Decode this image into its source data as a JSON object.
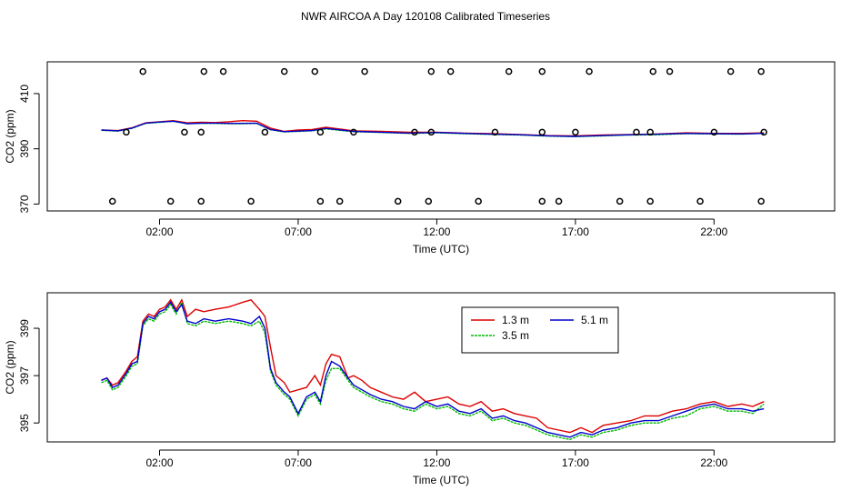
{
  "title": "NWR AIRCOA A  Day 120108  Calibrated Timeseries",
  "colors": {
    "s1": "#dd0000",
    "s2": "#00bb00",
    "s3": "#0000cc"
  },
  "chart_data": [
    {
      "type": "line",
      "xlabel": "Time (UTC)",
      "ylabel": "CO2 (ppm)",
      "xlim": [
        -2.05,
        26.35
      ],
      "ylim": [
        367.5,
        421.5
      ],
      "xticks": [
        {
          "v": 2,
          "label": "02:00"
        },
        {
          "v": 7,
          "label": "07:00"
        },
        {
          "v": 12,
          "label": "12:00"
        },
        {
          "v": 17,
          "label": "17:00"
        },
        {
          "v": 22,
          "label": "22:00"
        }
      ],
      "yticks": [
        {
          "v": 370,
          "label": "370"
        },
        {
          "v": 390,
          "label": "390"
        },
        {
          "v": 410,
          "label": "410"
        }
      ],
      "series": [
        {
          "color": "#dd0000",
          "x": [
            -0.1,
            0.5,
            1.0,
            1.5,
            2.0,
            2.5,
            3.0,
            3.5,
            4.0,
            4.5,
            5.0,
            5.5,
            6.0,
            6.5,
            7.0,
            7.5,
            8.0,
            9.0,
            10.0,
            11.0,
            12.0,
            13.0,
            14.0,
            15.0,
            16.0,
            17.0,
            18.0,
            19.0,
            20.0,
            21.0,
            22.0,
            23.0,
            23.8
          ],
          "y": [
            396.8,
            396.6,
            397.6,
            399.4,
            399.8,
            400.2,
            399.4,
            399.6,
            399.5,
            399.8,
            400.2,
            400.0,
            397.5,
            396.3,
            396.8,
            397.0,
            397.8,
            396.5,
            396.3,
            396.0,
            396.0,
            395.7,
            395.5,
            395.2,
            394.8,
            394.7,
            395.0,
            395.2,
            395.4,
            395.8,
            395.6,
            395.6,
            395.8
          ]
        },
        {
          "color": "#00bb00",
          "x": [
            -0.1,
            0.5,
            1.0,
            1.5,
            2.0,
            2.5,
            3.0,
            3.5,
            4.0,
            4.5,
            5.0,
            5.5,
            6.0,
            6.5,
            7.0,
            7.5,
            8.0,
            9.0,
            10.0,
            11.0,
            12.0,
            13.0,
            14.0,
            15.0,
            16.0,
            17.0,
            18.0,
            19.0,
            20.0,
            21.0,
            22.0,
            23.0,
            23.8
          ],
          "y": [
            396.7,
            396.4,
            397.4,
            399.2,
            399.6,
            400.0,
            399.1,
            399.2,
            399.2,
            399.1,
            399.1,
            399.2,
            396.9,
            396.1,
            396.3,
            396.5,
            397.2,
            396.2,
            395.9,
            395.6,
            395.8,
            395.5,
            395.2,
            395.0,
            394.6,
            394.4,
            394.7,
            395.0,
            395.1,
            395.5,
            395.4,
            395.3,
            395.7
          ]
        },
        {
          "color": "#0000cc",
          "x": [
            -0.1,
            0.5,
            1.0,
            1.5,
            2.0,
            2.5,
            3.0,
            3.5,
            4.0,
            4.5,
            5.0,
            5.5,
            6.0,
            6.5,
            7.0,
            7.5,
            8.0,
            9.0,
            10.0,
            11.0,
            12.0,
            13.0,
            14.0,
            15.0,
            16.0,
            17.0,
            18.0,
            19.0,
            20.0,
            21.0,
            22.0,
            23.0,
            23.8
          ],
          "y": [
            396.8,
            396.5,
            397.5,
            399.3,
            399.7,
            400.0,
            399.1,
            399.3,
            399.3,
            399.2,
            399.2,
            399.3,
            397.0,
            396.2,
            396.4,
            396.6,
            397.4,
            396.3,
            396.0,
            395.7,
            395.9,
            395.6,
            395.3,
            395.1,
            394.7,
            394.5,
            394.8,
            395.1,
            395.3,
            395.6,
            395.5,
            395.4,
            395.6
          ]
        }
      ],
      "points": [
        {
          "x": 0.3,
          "y": 371
        },
        {
          "x": 2.4,
          "y": 371
        },
        {
          "x": 3.5,
          "y": 371
        },
        {
          "x": 5.3,
          "y": 371
        },
        {
          "x": 7.8,
          "y": 371
        },
        {
          "x": 8.5,
          "y": 371
        },
        {
          "x": 10.6,
          "y": 371
        },
        {
          "x": 11.7,
          "y": 371
        },
        {
          "x": 13.5,
          "y": 371
        },
        {
          "x": 15.8,
          "y": 371
        },
        {
          "x": 16.4,
          "y": 371
        },
        {
          "x": 18.6,
          "y": 371
        },
        {
          "x": 19.7,
          "y": 371
        },
        {
          "x": 21.5,
          "y": 371
        },
        {
          "x": 23.7,
          "y": 371
        },
        {
          "x": 1.4,
          "y": 418
        },
        {
          "x": 3.6,
          "y": 418
        },
        {
          "x": 4.3,
          "y": 418
        },
        {
          "x": 6.5,
          "y": 418
        },
        {
          "x": 7.6,
          "y": 418
        },
        {
          "x": 9.4,
          "y": 418
        },
        {
          "x": 11.8,
          "y": 418
        },
        {
          "x": 12.5,
          "y": 418
        },
        {
          "x": 14.6,
          "y": 418
        },
        {
          "x": 15.8,
          "y": 418
        },
        {
          "x": 17.5,
          "y": 418
        },
        {
          "x": 19.8,
          "y": 418
        },
        {
          "x": 20.4,
          "y": 418
        },
        {
          "x": 22.6,
          "y": 418
        },
        {
          "x": 23.7,
          "y": 418
        },
        {
          "x": 0.8,
          "y": 396
        },
        {
          "x": 2.9,
          "y": 396
        },
        {
          "x": 3.5,
          "y": 396
        },
        {
          "x": 5.8,
          "y": 396
        },
        {
          "x": 7.8,
          "y": 396
        },
        {
          "x": 9.0,
          "y": 396
        },
        {
          "x": 11.2,
          "y": 396
        },
        {
          "x": 11.8,
          "y": 396
        },
        {
          "x": 14.1,
          "y": 396
        },
        {
          "x": 15.8,
          "y": 396
        },
        {
          "x": 17.0,
          "y": 396
        },
        {
          "x": 19.2,
          "y": 396
        },
        {
          "x": 19.7,
          "y": 396
        },
        {
          "x": 22.0,
          "y": 396
        },
        {
          "x": 23.8,
          "y": 396
        }
      ]
    },
    {
      "type": "line",
      "xlabel": "Time (UTC)",
      "ylabel": "CO2 (ppm)",
      "xlim": [
        -2.05,
        26.35
      ],
      "ylim": [
        394.2,
        400.5
      ],
      "xticks": [
        {
          "v": 2,
          "label": "02:00"
        },
        {
          "v": 7,
          "label": "07:00"
        },
        {
          "v": 12,
          "label": "12:00"
        },
        {
          "v": 17,
          "label": "17:00"
        },
        {
          "v": 22,
          "label": "22:00"
        }
      ],
      "yticks": [
        {
          "v": 395,
          "label": "395"
        },
        {
          "v": 397,
          "label": "397"
        },
        {
          "v": 399,
          "label": "399"
        }
      ],
      "legend": "top-center",
      "series": [
        {
          "name": "1.3 m",
          "color": "#dd0000",
          "x": [
            -0.1,
            0.1,
            0.3,
            0.5,
            0.8,
            1.0,
            1.2,
            1.4,
            1.6,
            1.8,
            2.0,
            2.2,
            2.4,
            2.6,
            2.8,
            3.0,
            3.3,
            3.6,
            4.0,
            4.5,
            5.0,
            5.3,
            5.6,
            5.8,
            6.0,
            6.2,
            6.5,
            6.7,
            7.0,
            7.3,
            7.6,
            7.8,
            8.0,
            8.2,
            8.5,
            8.8,
            9.0,
            9.3,
            9.6,
            10.0,
            10.4,
            10.8,
            11.2,
            11.6,
            12.0,
            12.4,
            12.8,
            13.2,
            13.6,
            14.0,
            14.4,
            14.8,
            15.2,
            15.6,
            16.0,
            16.4,
            16.8,
            17.2,
            17.6,
            18.0,
            18.5,
            19.0,
            19.5,
            20.0,
            20.5,
            21.0,
            21.5,
            22.0,
            22.5,
            23.0,
            23.4,
            23.8
          ],
          "y": [
            396.8,
            396.9,
            396.6,
            396.7,
            397.2,
            397.6,
            397.8,
            399.3,
            399.6,
            399.5,
            399.8,
            399.9,
            400.2,
            399.8,
            400.2,
            399.5,
            399.8,
            399.7,
            399.8,
            399.9,
            400.1,
            400.2,
            399.8,
            399.5,
            398.2,
            397.0,
            396.7,
            396.3,
            396.4,
            396.5,
            397.0,
            396.6,
            397.5,
            397.9,
            397.8,
            396.9,
            397.0,
            396.8,
            396.5,
            396.3,
            396.1,
            396.0,
            396.3,
            395.9,
            396.0,
            396.1,
            395.8,
            395.7,
            395.9,
            395.5,
            395.6,
            395.4,
            395.3,
            395.2,
            394.8,
            394.7,
            394.6,
            394.8,
            394.6,
            394.9,
            395.0,
            395.1,
            395.3,
            395.3,
            395.5,
            395.6,
            395.8,
            395.9,
            395.7,
            395.8,
            395.7,
            395.9
          ]
        },
        {
          "name": "3.5 m",
          "color": "#00bb00",
          "x": [
            -0.1,
            0.1,
            0.3,
            0.5,
            0.8,
            1.0,
            1.2,
            1.4,
            1.6,
            1.8,
            2.0,
            2.2,
            2.4,
            2.6,
            2.8,
            3.0,
            3.3,
            3.6,
            4.0,
            4.5,
            5.0,
            5.3,
            5.6,
            5.8,
            6.0,
            6.2,
            6.5,
            6.7,
            7.0,
            7.3,
            7.6,
            7.8,
            8.0,
            8.2,
            8.5,
            8.8,
            9.0,
            9.3,
            9.6,
            10.0,
            10.4,
            10.8,
            11.2,
            11.6,
            12.0,
            12.4,
            12.8,
            13.2,
            13.6,
            14.0,
            14.4,
            14.8,
            15.2,
            15.6,
            16.0,
            16.4,
            16.8,
            17.2,
            17.6,
            18.0,
            18.5,
            19.0,
            19.5,
            20.0,
            20.5,
            21.0,
            21.5,
            22.0,
            22.5,
            23.0,
            23.4,
            23.8
          ],
          "y": [
            396.7,
            396.8,
            396.4,
            396.5,
            397.0,
            397.4,
            397.5,
            399.1,
            399.4,
            399.3,
            399.6,
            399.7,
            400.0,
            399.6,
            400.1,
            399.2,
            399.1,
            399.3,
            399.2,
            399.3,
            399.2,
            399.1,
            399.3,
            398.8,
            397.2,
            396.6,
            396.2,
            396.0,
            395.3,
            396.0,
            396.2,
            395.8,
            396.8,
            397.3,
            397.3,
            396.8,
            396.5,
            396.3,
            396.1,
            395.9,
            395.8,
            395.6,
            395.5,
            395.8,
            395.6,
            395.7,
            395.4,
            395.3,
            395.5,
            395.1,
            395.2,
            395.0,
            394.9,
            394.7,
            394.5,
            394.4,
            394.3,
            394.5,
            394.4,
            394.6,
            394.7,
            394.9,
            395.0,
            395.0,
            395.2,
            395.3,
            395.6,
            395.7,
            395.5,
            395.5,
            395.4,
            395.8
          ]
        },
        {
          "name": "5.1 m",
          "color": "#0000cc",
          "x": [
            -0.1,
            0.1,
            0.3,
            0.5,
            0.8,
            1.0,
            1.2,
            1.4,
            1.6,
            1.8,
            2.0,
            2.2,
            2.4,
            2.6,
            2.8,
            3.0,
            3.3,
            3.6,
            4.0,
            4.5,
            5.0,
            5.3,
            5.6,
            5.8,
            6.0,
            6.2,
            6.5,
            6.7,
            7.0,
            7.3,
            7.6,
            7.8,
            8.0,
            8.2,
            8.5,
            8.8,
            9.0,
            9.3,
            9.6,
            10.0,
            10.4,
            10.8,
            11.2,
            11.6,
            12.0,
            12.4,
            12.8,
            13.2,
            13.6,
            14.0,
            14.4,
            14.8,
            15.2,
            15.6,
            16.0,
            16.4,
            16.8,
            17.2,
            17.6,
            18.0,
            18.5,
            19.0,
            19.5,
            20.0,
            20.5,
            21.0,
            21.5,
            22.0,
            22.5,
            23.0,
            23.4,
            23.8
          ],
          "y": [
            396.8,
            396.9,
            396.5,
            396.6,
            397.1,
            397.5,
            397.6,
            399.2,
            399.5,
            399.4,
            399.7,
            399.8,
            400.1,
            399.7,
            400.0,
            399.3,
            399.2,
            399.4,
            399.3,
            399.4,
            399.3,
            399.2,
            399.5,
            399.0,
            397.3,
            396.7,
            396.3,
            396.1,
            395.4,
            396.1,
            396.3,
            395.9,
            397.0,
            397.6,
            397.4,
            396.9,
            396.6,
            396.4,
            396.2,
            396.0,
            395.9,
            395.7,
            395.6,
            395.9,
            395.7,
            395.8,
            395.5,
            395.4,
            395.6,
            395.2,
            395.3,
            395.1,
            395.0,
            394.8,
            394.6,
            394.5,
            394.4,
            394.6,
            394.5,
            394.7,
            394.8,
            395.0,
            395.1,
            395.1,
            395.3,
            395.5,
            395.7,
            395.8,
            395.6,
            395.6,
            395.5,
            395.6
          ]
        }
      ]
    }
  ]
}
